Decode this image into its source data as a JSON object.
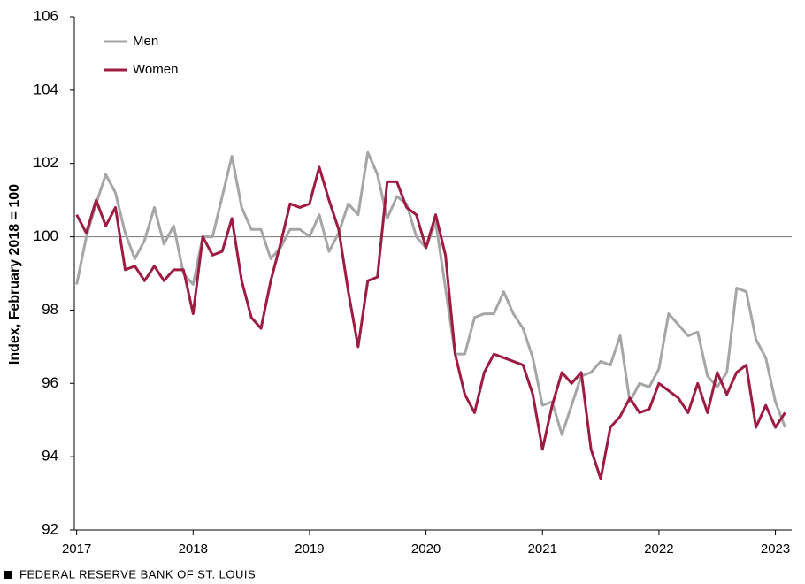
{
  "chart_data": {
    "type": "line",
    "y_label": "Index, February  2018 = 100",
    "footer": "FEDERAL RESERVE BANK OF ST. LOUIS",
    "x": [
      2017,
      2017.083,
      2017.167,
      2017.25,
      2017.333,
      2017.417,
      2017.5,
      2017.583,
      2017.667,
      2017.75,
      2017.833,
      2017.917,
      2018,
      2018.083,
      2018.167,
      2018.25,
      2018.333,
      2018.417,
      2018.5,
      2018.583,
      2018.667,
      2018.75,
      2018.833,
      2018.917,
      2019,
      2019.083,
      2019.167,
      2019.25,
      2019.333,
      2019.417,
      2019.5,
      2019.583,
      2019.667,
      2019.75,
      2019.833,
      2019.917,
      2020,
      2020.083,
      2020.167,
      2020.25,
      2020.333,
      2020.417,
      2020.5,
      2020.583,
      2020.667,
      2020.75,
      2020.833,
      2020.917,
      2021,
      2021.083,
      2021.167,
      2021.25,
      2021.333,
      2021.417,
      2021.5,
      2021.583,
      2021.667,
      2021.75,
      2021.833,
      2021.917,
      2022,
      2022.083,
      2022.167,
      2022.25,
      2022.333,
      2022.417,
      2022.5,
      2022.583,
      2022.667,
      2022.75,
      2022.833,
      2022.917,
      2023,
      2023.083
    ],
    "series": [
      {
        "name": "Men",
        "color": "#a6a6a6",
        "values": [
          98.7,
          100.0,
          100.9,
          101.7,
          101.2,
          100.1,
          99.4,
          99.9,
          100.8,
          99.8,
          100.3,
          99.0,
          98.7,
          100.0,
          100.0,
          101.1,
          102.2,
          100.8,
          100.2,
          100.2,
          99.4,
          99.7,
          100.2,
          100.2,
          100.0,
          100.6,
          99.6,
          100.1,
          100.9,
          100.6,
          102.3,
          101.7,
          100.5,
          101.1,
          100.9,
          100.0,
          99.7,
          100.4,
          98.6,
          96.8,
          96.8,
          97.8,
          97.9,
          97.9,
          98.5,
          97.9,
          97.5,
          96.7,
          95.4,
          95.5,
          94.6,
          95.4,
          96.2,
          96.3,
          96.6,
          96.5,
          97.3,
          95.5,
          96.0,
          95.9,
          96.4,
          97.9,
          97.6,
          97.3,
          97.4,
          96.2,
          95.9,
          96.3,
          98.6,
          98.5,
          97.2,
          96.7,
          95.5,
          94.8
        ]
      },
      {
        "name": "Women",
        "color": "#9e1b42",
        "values": [
          100.6,
          100.1,
          101.0,
          100.3,
          100.8,
          99.1,
          99.2,
          98.8,
          99.2,
          98.8,
          99.1,
          99.1,
          97.9,
          100.0,
          99.5,
          99.6,
          100.5,
          98.8,
          97.8,
          97.5,
          98.8,
          99.8,
          100.9,
          100.8,
          100.9,
          101.9,
          101.0,
          100.2,
          98.5,
          97.0,
          98.8,
          98.9,
          101.5,
          101.5,
          100.8,
          100.6,
          99.7,
          100.6,
          99.5,
          96.8,
          95.7,
          95.2,
          96.3,
          96.8,
          96.7,
          96.6,
          96.5,
          95.7,
          94.2,
          95.4,
          96.3,
          96.0,
          96.3,
          94.2,
          93.4,
          94.8,
          95.1,
          95.6,
          95.2,
          95.3,
          96.0,
          95.8,
          95.6,
          95.2,
          96.0,
          95.2,
          96.3,
          95.7,
          96.3,
          96.5,
          94.8,
          95.4,
          94.8,
          95.2
        ]
      }
    ],
    "xlim": [
      2016.98,
      2023.14
    ],
    "xticks": [
      2017,
      2018,
      2019,
      2020,
      2021,
      2022,
      2023
    ],
    "ylim": [
      92,
      106
    ],
    "yticks": [
      92,
      94,
      96,
      98,
      100,
      102,
      104,
      106
    ],
    "reference_line": 100,
    "legend": "top-left"
  }
}
